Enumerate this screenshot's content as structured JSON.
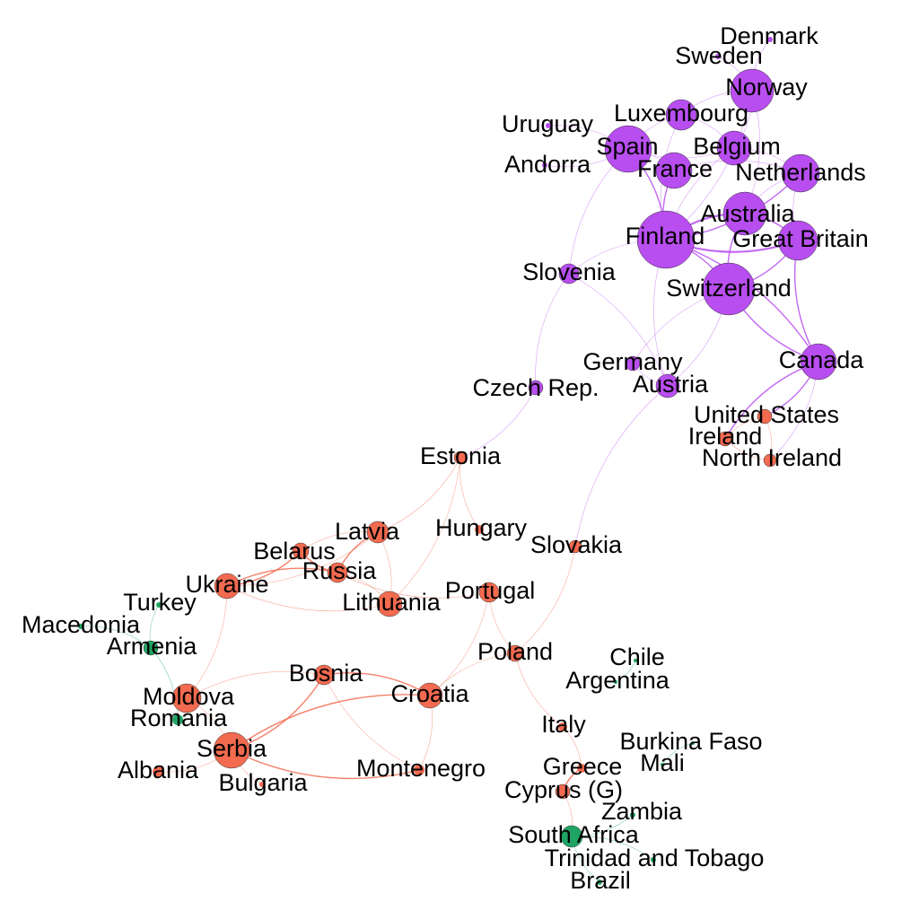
{
  "colors": {
    "purple": "#b84ef0",
    "red": "#f26a4f",
    "green": "#1fa463"
  },
  "nodes": [
    {
      "id": "denmark",
      "label": "Denmark",
      "cluster": "purple",
      "size": 3
    },
    {
      "id": "sweden",
      "label": "Sweden",
      "cluster": "purple",
      "size": 3
    },
    {
      "id": "norway",
      "label": "Norway",
      "cluster": "purple",
      "size": 24
    },
    {
      "id": "luxembourg",
      "label": "Luxembourg",
      "cluster": "purple",
      "size": 17
    },
    {
      "id": "uruguay",
      "label": "Uruguay",
      "cluster": "purple",
      "size": 3
    },
    {
      "id": "spain",
      "label": "Spain",
      "cluster": "purple",
      "size": 26
    },
    {
      "id": "belgium",
      "label": "Belgium",
      "cluster": "purple",
      "size": 19
    },
    {
      "id": "andorra",
      "label": "Andorra",
      "cluster": "purple",
      "size": 3
    },
    {
      "id": "france",
      "label": "France",
      "cluster": "purple",
      "size": 20
    },
    {
      "id": "netherlands",
      "label": "Netherlands",
      "cluster": "purple",
      "size": 21
    },
    {
      "id": "australia",
      "label": "Australia",
      "cluster": "purple",
      "size": 24
    },
    {
      "id": "finland",
      "label": "Finland",
      "cluster": "purple",
      "size": 32
    },
    {
      "id": "great_britain",
      "label": "Great Britain",
      "cluster": "purple",
      "size": 22
    },
    {
      "id": "slovenia",
      "label": "Slovenia",
      "cluster": "purple",
      "size": 11
    },
    {
      "id": "switzerland",
      "label": "Switzerland",
      "cluster": "purple",
      "size": 29
    },
    {
      "id": "germany",
      "label": "Germany",
      "cluster": "purple",
      "size": 8
    },
    {
      "id": "canada",
      "label": "Canada",
      "cluster": "purple",
      "size": 20
    },
    {
      "id": "czech",
      "label": "Czech Rep.",
      "cluster": "purple",
      "size": 8
    },
    {
      "id": "austria",
      "label": "Austria",
      "cluster": "purple",
      "size": 13
    },
    {
      "id": "united_states",
      "label": "United States",
      "cluster": "red",
      "size": 8
    },
    {
      "id": "ireland",
      "label": "Ireland",
      "cluster": "red",
      "size": 8
    },
    {
      "id": "north_ireland",
      "label": "North Ireland",
      "cluster": "red",
      "size": 7
    },
    {
      "id": "estonia",
      "label": "Estonia",
      "cluster": "red",
      "size": 7
    },
    {
      "id": "latvia",
      "label": "Latvia",
      "cluster": "red",
      "size": 12
    },
    {
      "id": "hungary",
      "label": "Hungary",
      "cluster": "red",
      "size": 5
    },
    {
      "id": "belarus",
      "label": "Belarus",
      "cluster": "red",
      "size": 9
    },
    {
      "id": "slovakia",
      "label": "Slovakia",
      "cluster": "red",
      "size": 7
    },
    {
      "id": "russia",
      "label": "Russia",
      "cluster": "red",
      "size": 11
    },
    {
      "id": "ukraine",
      "label": "Ukraine",
      "cluster": "red",
      "size": 14
    },
    {
      "id": "portugal",
      "label": "Portugal",
      "cluster": "red",
      "size": 11
    },
    {
      "id": "turkey",
      "label": "Turkey",
      "cluster": "green",
      "size": 3
    },
    {
      "id": "lithuania",
      "label": "Lithuania",
      "cluster": "red",
      "size": 14
    },
    {
      "id": "macedonia",
      "label": "Macedonia",
      "cluster": "green",
      "size": 3
    },
    {
      "id": "armenia",
      "label": "Armenia",
      "cluster": "green",
      "size": 8
    },
    {
      "id": "poland",
      "label": "Poland",
      "cluster": "red",
      "size": 9
    },
    {
      "id": "chile",
      "label": "Chile",
      "cluster": "green",
      "size": 2
    },
    {
      "id": "bosnia",
      "label": "Bosnia",
      "cluster": "red",
      "size": 11
    },
    {
      "id": "argentina",
      "label": "Argentina",
      "cluster": "green",
      "size": 2
    },
    {
      "id": "moldova",
      "label": "Moldova",
      "cluster": "red",
      "size": 16
    },
    {
      "id": "croatia",
      "label": "Croatia",
      "cluster": "red",
      "size": 14
    },
    {
      "id": "romania",
      "label": "Romania",
      "cluster": "green",
      "size": 6
    },
    {
      "id": "italy",
      "label": "Italy",
      "cluster": "red",
      "size": 5
    },
    {
      "id": "burkina_faso",
      "label": "Burkina Faso",
      "cluster": "green",
      "size": 2
    },
    {
      "id": "serbia",
      "label": "Serbia",
      "cluster": "red",
      "size": 20
    },
    {
      "id": "mali",
      "label": "Mali",
      "cluster": "green",
      "size": 2
    },
    {
      "id": "albania",
      "label": "Albania",
      "cluster": "red",
      "size": 6
    },
    {
      "id": "montenegro",
      "label": "Montenegro",
      "cluster": "red",
      "size": 6
    },
    {
      "id": "greece",
      "label": "Greece",
      "cluster": "red",
      "size": 5
    },
    {
      "id": "bulgaria",
      "label": "Bulgaria",
      "cluster": "red",
      "size": 3
    },
    {
      "id": "cyprus",
      "label": "Cyprus (G)",
      "cluster": "red",
      "size": 8
    },
    {
      "id": "zambia",
      "label": "Zambia",
      "cluster": "green",
      "size": 3
    },
    {
      "id": "south_africa",
      "label": "South Africa",
      "cluster": "green",
      "size": 12
    },
    {
      "id": "trinidad",
      "label": "Trinidad and Tobago",
      "cluster": "green",
      "size": 3
    },
    {
      "id": "brazil",
      "label": "Brazil",
      "cluster": "green",
      "size": 3
    }
  ],
  "edges": [
    [
      "finland",
      "australia",
      3
    ],
    [
      "finland",
      "great_britain",
      3
    ],
    [
      "finland",
      "switzerland",
      2
    ],
    [
      "finland",
      "spain",
      2
    ],
    [
      "finland",
      "france",
      2
    ],
    [
      "finland",
      "netherlands",
      2
    ],
    [
      "finland",
      "belgium",
      1
    ],
    [
      "finland",
      "norway",
      1
    ],
    [
      "finland",
      "luxembourg",
      1
    ],
    [
      "finland",
      "slovenia",
      1
    ],
    [
      "finland",
      "canada",
      2
    ],
    [
      "finland",
      "austria",
      1
    ],
    [
      "australia",
      "great_britain",
      2
    ],
    [
      "australia",
      "switzerland",
      2
    ],
    [
      "australia",
      "netherlands",
      1
    ],
    [
      "australia",
      "norway",
      1
    ],
    [
      "great_britain",
      "switzerland",
      2
    ],
    [
      "great_britain",
      "canada",
      2
    ],
    [
      "great_britain",
      "netherlands",
      1
    ],
    [
      "switzerland",
      "canada",
      2
    ],
    [
      "switzerland",
      "austria",
      1
    ],
    [
      "switzerland",
      "germany",
      1
    ],
    [
      "spain",
      "france",
      1
    ],
    [
      "spain",
      "belgium",
      1
    ],
    [
      "spain",
      "luxembourg",
      1
    ],
    [
      "spain",
      "uruguay",
      1
    ],
    [
      "spain",
      "andorra",
      1
    ],
    [
      "spain",
      "slovenia",
      1
    ],
    [
      "belgium",
      "netherlands",
      1
    ],
    [
      "belgium",
      "norway",
      1
    ],
    [
      "france",
      "netherlands",
      1
    ],
    [
      "norway",
      "sweden",
      1
    ],
    [
      "norway",
      "denmark",
      1
    ],
    [
      "norway",
      "luxembourg",
      1
    ],
    [
      "luxembourg",
      "belgium",
      1
    ],
    [
      "slovenia",
      "czech",
      1
    ],
    [
      "slovenia",
      "austria",
      1
    ],
    [
      "germany",
      "austria",
      1
    ],
    [
      "czech",
      "estonia",
      1
    ],
    [
      "austria",
      "slovakia",
      1
    ],
    [
      "canada",
      "united_states",
      2
    ],
    [
      "canada",
      "ireland",
      2
    ],
    [
      "canada",
      "north_ireland",
      1
    ],
    [
      "united_states",
      "ireland",
      1
    ],
    [
      "united_states",
      "north_ireland",
      1
    ],
    [
      "ireland",
      "north_ireland",
      1
    ],
    [
      "estonia",
      "latvia",
      1
    ],
    [
      "estonia",
      "hungary",
      1
    ],
    [
      "estonia",
      "lithuania",
      1
    ],
    [
      "latvia",
      "russia",
      2
    ],
    [
      "latvia",
      "lithuania",
      1
    ],
    [
      "latvia",
      "belarus",
      1
    ],
    [
      "latvia",
      "ukraine",
      1
    ],
    [
      "belarus",
      "russia",
      2
    ],
    [
      "belarus",
      "ukraine",
      2
    ],
    [
      "russia",
      "ukraine",
      2
    ],
    [
      "russia",
      "lithuania",
      1
    ],
    [
      "russia",
      "portugal",
      1
    ],
    [
      "ukraine",
      "moldova",
      1
    ],
    [
      "ukraine",
      "lithuania",
      1
    ],
    [
      "moldova",
      "serbia",
      1
    ],
    [
      "moldova",
      "romania",
      1
    ],
    [
      "moldova",
      "bosnia",
      1
    ],
    [
      "serbia",
      "bosnia",
      2
    ],
    [
      "serbia",
      "croatia",
      2
    ],
    [
      "serbia",
      "montenegro",
      2
    ],
    [
      "serbia",
      "albania",
      1
    ],
    [
      "serbia",
      "bulgaria",
      1
    ],
    [
      "bosnia",
      "croatia",
      2
    ],
    [
      "bosnia",
      "montenegro",
      1
    ],
    [
      "croatia",
      "poland",
      1
    ],
    [
      "croatia",
      "portugal",
      1
    ],
    [
      "croatia",
      "montenegro",
      1
    ],
    [
      "poland",
      "slovakia",
      1
    ],
    [
      "poland",
      "portugal",
      1
    ],
    [
      "poland",
      "italy",
      1
    ],
    [
      "italy",
      "greece",
      1
    ],
    [
      "greece",
      "cyprus",
      2
    ],
    [
      "cyprus",
      "south_africa",
      1
    ],
    [
      "south_africa",
      "zambia",
      1
    ],
    [
      "south_africa",
      "trinidad",
      1
    ],
    [
      "south_africa",
      "brazil",
      1
    ],
    [
      "chile",
      "argentina",
      1
    ],
    [
      "burkina_faso",
      "mali",
      1
    ],
    [
      "macedonia",
      "armenia",
      1
    ],
    [
      "turkey",
      "armenia",
      1
    ],
    [
      "armenia",
      "romania",
      1
    ]
  ]
}
